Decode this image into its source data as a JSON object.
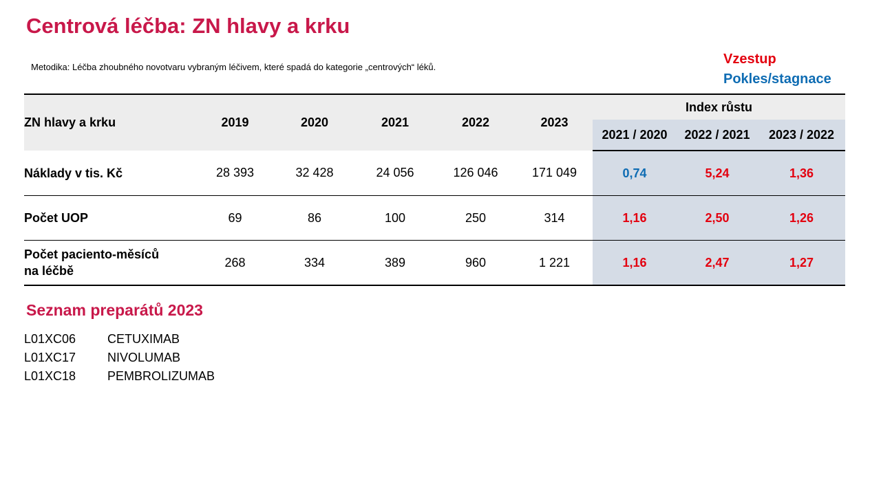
{
  "title": "Centrová léčba: ZN hlavy a krku",
  "methodology": "Metodika: Léčba zhoubného novotvaru vybraným léčivem, které spadá do kategorie „centrových“ léků.",
  "legend": {
    "increase": "Vzestup",
    "decrease": "Pokles/stagnace"
  },
  "colors": {
    "title": "#c8184a",
    "increase": "#e3000f",
    "decrease": "#0e6cb3",
    "index_bg": "#d5dce6",
    "header_bg": "#ededed"
  },
  "table": {
    "row_header": "ZN hlavy a krku",
    "years": [
      "2019",
      "2020",
      "2021",
      "2022",
      "2023"
    ],
    "index_header": "Index růstu",
    "index_columns": [
      "2021 / 2020",
      "2022 / 2021",
      "2023 / 2022"
    ],
    "rows": [
      {
        "label": "Náklady v tis. Kč",
        "values": [
          "28 393",
          "32 428",
          "24 056",
          "126 046",
          "171 049"
        ],
        "indices": [
          {
            "value": "0,74",
            "trend": "down"
          },
          {
            "value": "5,24",
            "trend": "up"
          },
          {
            "value": "1,36",
            "trend": "up"
          }
        ]
      },
      {
        "label": "Počet UOP",
        "values": [
          "69",
          "86",
          "100",
          "250",
          "314"
        ],
        "indices": [
          {
            "value": "1,16",
            "trend": "up"
          },
          {
            "value": "2,50",
            "trend": "up"
          },
          {
            "value": "1,26",
            "trend": "up"
          }
        ]
      },
      {
        "label_lines": [
          "Počet paciento-měsíců",
          "na léčbě"
        ],
        "values": [
          "268",
          "334",
          "389",
          "960",
          "1 221"
        ],
        "indices": [
          {
            "value": "1,16",
            "trend": "up"
          },
          {
            "value": "2,47",
            "trend": "up"
          },
          {
            "value": "1,27",
            "trend": "up"
          }
        ]
      }
    ]
  },
  "drugs_title": "Seznam preparátů 2023",
  "drugs": [
    {
      "code": "L01XC06",
      "name": "CETUXIMAB"
    },
    {
      "code": "L01XC17",
      "name": "NIVOLUMAB"
    },
    {
      "code": "L01XC18",
      "name": "PEMBROLIZUMAB"
    }
  ]
}
